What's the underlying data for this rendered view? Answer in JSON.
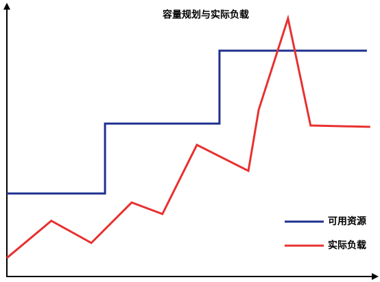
{
  "chart_data": {
    "type": "line",
    "title": "容量规划与实际负载",
    "xlim": [
      0,
      100
    ],
    "ylim": [
      0,
      100
    ],
    "legend": "lower right",
    "series": [
      {
        "name": "可用资源",
        "color": "#1f2f8f",
        "x": [
          0,
          26.5,
          26.5,
          57.4,
          57.4,
          97.2
        ],
        "values": [
          30.4,
          30.4,
          56.0,
          56.0,
          82.7,
          82.7
        ]
      },
      {
        "name": "实际负载",
        "color": "#e8302f",
        "x": [
          0,
          12.0,
          22.8,
          33.7,
          42.0,
          51.3,
          65.2,
          68.0,
          75.9,
          82.0,
          98.1
        ],
        "values": [
          6.8,
          20.4,
          12.3,
          27.1,
          22.9,
          48.2,
          38.7,
          61.1,
          94.5,
          55.3,
          54.8
        ]
      }
    ]
  }
}
